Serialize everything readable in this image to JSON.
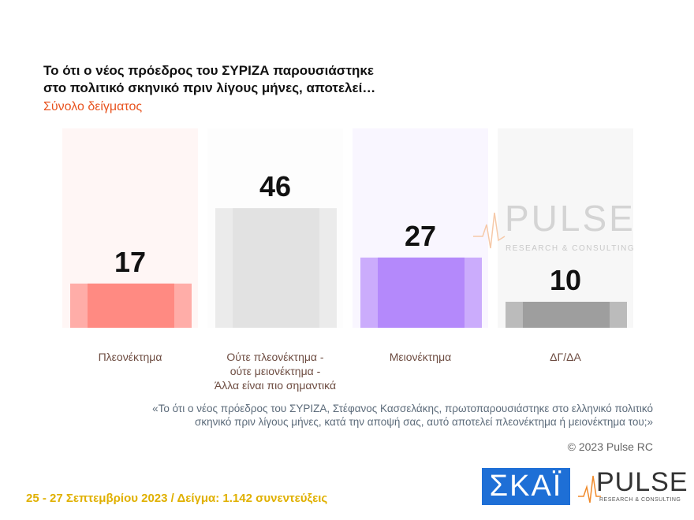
{
  "chart_data": {
    "type": "bar",
    "title": "Το ότι ο νέος πρόεδρος του ΣΥΡΙΖΑ παρουσιάστηκε\nστο πολιτικό σκηνικό πριν λίγους μήνες, αποτελεί…",
    "subtitle": "Σύνολο δείγματος",
    "categories": [
      "Πλεονέκτημα",
      "Ούτε πλεονέκτημα -\nούτε μειονέκτημα -\nΆλλα είναι πιο σημαντικά",
      "Μειονέκτημα",
      "ΔΓ/ΔΑ"
    ],
    "values": [
      17,
      46,
      27,
      10
    ],
    "colors": [
      "#ff8a82",
      "#e2e2e2",
      "#b489fb",
      "#9e9e9e"
    ],
    "note": "«Το ότι ο νέος πρόεδρος του ΣΥΡΙΖΑ, Στέφανος Κασσελάκης, πρωτοπαρουσιάστηκε στο ελληνικό πολιτικό\nσκηνικό πριν λίγους μήνες, κατά την αποψή σας, αυτό αποτελεί πλεονέκτημα ή μειονέκτημα του;»",
    "copyright": "© 2023 Pulse RC",
    "footer": "25 - 27  Σεπτεμβρίου  2023  /  Δείγμα:  1.142 συνεντεύξεις",
    "logos": {
      "skai": "ΣΚΑΪ",
      "pulse": "PULSE",
      "pulse_tagline": "RESEARCH & CONSULTING"
    }
  }
}
